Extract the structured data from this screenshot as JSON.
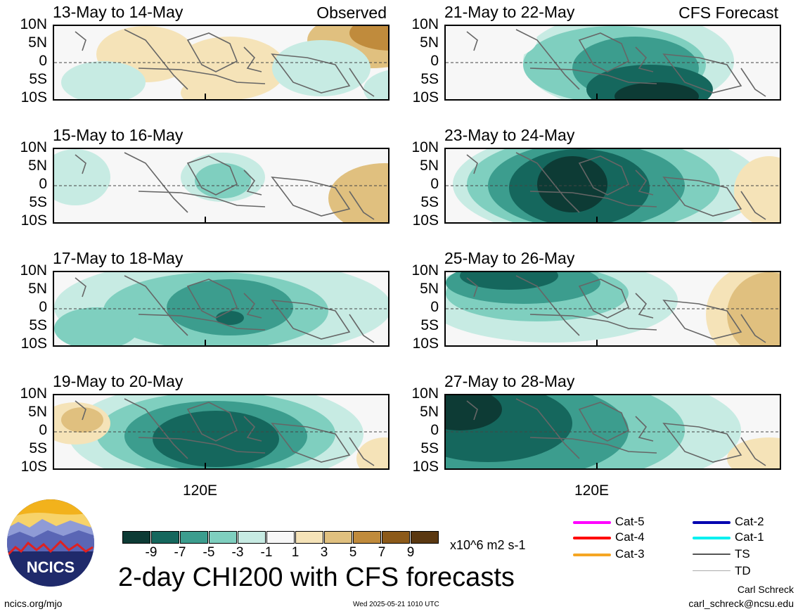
{
  "panels": [
    {
      "title": "13-May to 14-May",
      "tag": "Observed"
    },
    {
      "title": "21-May to 22-May",
      "tag": "CFS Forecast"
    },
    {
      "title": "15-May to 16-May",
      "tag": ""
    },
    {
      "title": "23-May to 24-May",
      "tag": ""
    },
    {
      "title": "17-May to 18-May",
      "tag": ""
    },
    {
      "title": "25-May to 26-May",
      "tag": ""
    },
    {
      "title": "19-May to 20-May",
      "tag": ""
    },
    {
      "title": "27-May to 28-May",
      "tag": ""
    }
  ],
  "lat_labels": [
    "10N",
    "5N",
    "0",
    "5S",
    "10S"
  ],
  "x_tick": "120E",
  "colorbar": {
    "labels": [
      "-9",
      "-7",
      "-5",
      "-3",
      "-1",
      "1",
      "3",
      "5",
      "7",
      "9"
    ],
    "colors": [
      "#0d3b35",
      "#15675d",
      "#3c9d8e",
      "#7fcfbf",
      "#c7ebe3",
      "#f7f7f7",
      "#f5e3b8",
      "#e0c07f",
      "#c08b3c",
      "#8c5a1a",
      "#5a3811"
    ],
    "units": "x10^6 m2 s-1"
  },
  "main_title": "2-day CHI200 with CFS forecasts",
  "legend": [
    {
      "label": "Cat-5",
      "color": "#ff00ff"
    },
    {
      "label": "Cat-4",
      "color": "#ff0000"
    },
    {
      "label": "Cat-3",
      "color": "#f5a623"
    },
    {
      "label": "Cat-2",
      "color": "#0000b0"
    },
    {
      "label": "Cat-1",
      "color": "#00f0f0"
    },
    {
      "label": "TS",
      "color": "#555555"
    },
    {
      "label": "TD",
      "color": "#aaaaaa"
    }
  ],
  "logo_text": "NCICS",
  "footer": {
    "left": "ncics.org/mjo",
    "center": "Wed 2025-05-21 1010 UTC",
    "right_name": "Carl Schreck",
    "right_email": "carl_schreck@ncsu.edu"
  }
}
